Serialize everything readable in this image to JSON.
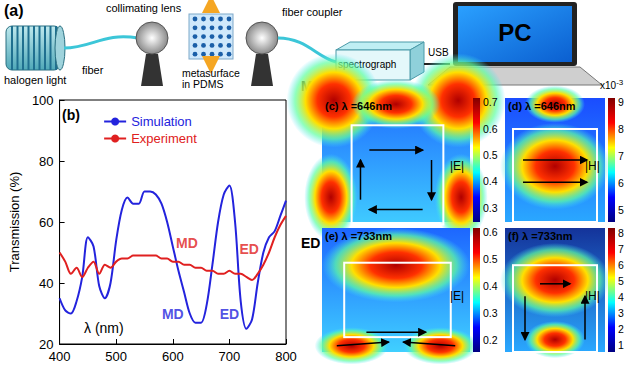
{
  "panel_a": {
    "letter": "(a)",
    "light_source": "halogen light",
    "fiber": "fiber",
    "lens": "collimating lens",
    "sample": [
      "metasurface",
      "in PDMS"
    ],
    "coupler": "fiber coupler",
    "spectrometer": "spectrograph",
    "cable": "USB",
    "computer": "PC"
  },
  "chart_data": {
    "type": "line",
    "panel_label": "(b)",
    "x_label": "λ (nm)",
    "y_label": "Transmission (%)",
    "xlim": [
      400,
      800
    ],
    "xticks": [
      400,
      500,
      600,
      700,
      800
    ],
    "ylim": [
      20,
      100
    ],
    "yticks": [
      20,
      40,
      60,
      80,
      100
    ],
    "grid": false,
    "legend": "top",
    "series": [
      {
        "name": "Simulation",
        "color": "#2323dd",
        "x": [
          400,
          410,
          420,
          430,
          440,
          450,
          460,
          470,
          480,
          490,
          500,
          510,
          520,
          530,
          540,
          550,
          560,
          570,
          580,
          590,
          600,
          610,
          620,
          630,
          640,
          650,
          660,
          670,
          680,
          690,
          700,
          710,
          720,
          730,
          740,
          750,
          760,
          770,
          780,
          790,
          800
        ],
        "values": [
          35,
          31,
          30,
          34,
          42,
          55,
          52,
          39,
          35,
          40,
          54,
          64,
          68,
          66,
          66,
          70,
          70,
          69,
          66,
          60,
          52,
          44,
          37,
          30,
          27,
          27,
          33,
          46,
          60,
          69,
          72,
          60,
          34,
          25,
          28,
          40,
          50,
          55,
          57,
          62,
          67
        ]
      },
      {
        "name": "Experiment",
        "color": "#e02020",
        "x": [
          400,
          410,
          420,
          430,
          440,
          450,
          460,
          470,
          480,
          490,
          500,
          510,
          520,
          530,
          540,
          550,
          560,
          570,
          580,
          590,
          600,
          610,
          620,
          630,
          640,
          650,
          660,
          670,
          680,
          690,
          700,
          710,
          720,
          730,
          740,
          750,
          760,
          770,
          780,
          790,
          800
        ],
        "values": [
          50,
          47,
          43,
          45,
          42,
          45,
          47,
          43,
          46,
          45,
          47,
          48,
          48,
          49,
          49,
          49,
          49,
          49,
          48,
          48,
          47,
          47,
          46,
          46,
          45,
          45,
          44,
          44,
          43,
          43,
          44,
          43,
          43,
          42,
          41,
          43,
          46,
          50,
          55,
          59,
          62
        ]
      }
    ],
    "annotations": [
      {
        "text": "MD",
        "x": 625,
        "y": 53,
        "color": "#e02020"
      },
      {
        "text": "ED",
        "x": 735,
        "y": 51,
        "color": "#e02020"
      },
      {
        "text": "MD",
        "x": 600,
        "y": 30,
        "color": "#2323dd"
      },
      {
        "text": "ED",
        "x": 700,
        "y": 30,
        "color": "#2323dd"
      }
    ]
  },
  "row_labels": [
    "MD",
    "ED"
  ],
  "field_maps": {
    "scale_label": "x10",
    "scale_exponent": "-3",
    "panels": [
      {
        "letter": "(c)",
        "wavelength_label": "λ =646nm",
        "quantity": "|E|",
        "colorbar_range": [
          0.25,
          0.72
        ],
        "colorbar_ticks": [
          0.3,
          0.4,
          0.5,
          0.6,
          0.7
        ]
      },
      {
        "letter": "(d)",
        "wavelength_label": "λ =646nm",
        "quantity": "|H|",
        "colorbar_range": [
          4.6,
          9.2
        ],
        "colorbar_ticks": [
          5,
          6,
          7,
          8,
          9
        ]
      },
      {
        "letter": "(e)",
        "wavelength_label": "λ =733nm",
        "quantity": "|E|",
        "colorbar_range": [
          0.16,
          0.62
        ],
        "colorbar_ticks": [
          0.2,
          0.3,
          0.4,
          0.5,
          0.6
        ]
      },
      {
        "letter": "(f)",
        "wavelength_label": "λ =733nm",
        "quantity": "|H|",
        "colorbar_range": [
          0.6,
          8.4
        ],
        "colorbar_ticks": [
          1,
          2,
          3,
          4,
          5,
          6,
          7,
          8
        ]
      }
    ]
  }
}
